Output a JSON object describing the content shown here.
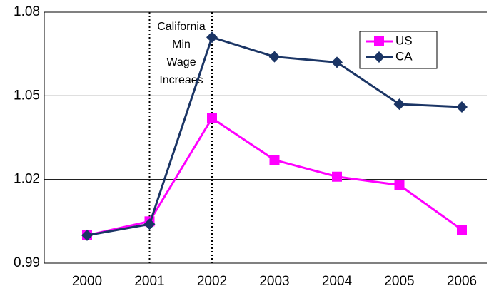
{
  "chart_data": {
    "type": "line",
    "categories": [
      "2000",
      "2001",
      "2002",
      "2003",
      "2004",
      "2005",
      "2006"
    ],
    "series": [
      {
        "name": "US",
        "color": "#ff00ff",
        "marker": "square",
        "values": [
          1.0,
          1.005,
          1.042,
          1.027,
          1.021,
          1.018,
          1.002
        ]
      },
      {
        "name": "CA",
        "color": "#1b3565",
        "marker": "diamond",
        "values": [
          1.0,
          1.004,
          1.071,
          1.064,
          1.062,
          1.047,
          1.046
        ]
      }
    ],
    "annotation": [
      "California",
      "Min",
      "Wage",
      "Increaes"
    ],
    "ylim": [
      0.99,
      1.08
    ],
    "yticks": [
      0.99,
      1.02,
      1.05,
      1.08
    ],
    "grid": true,
    "legend": "upper right"
  }
}
